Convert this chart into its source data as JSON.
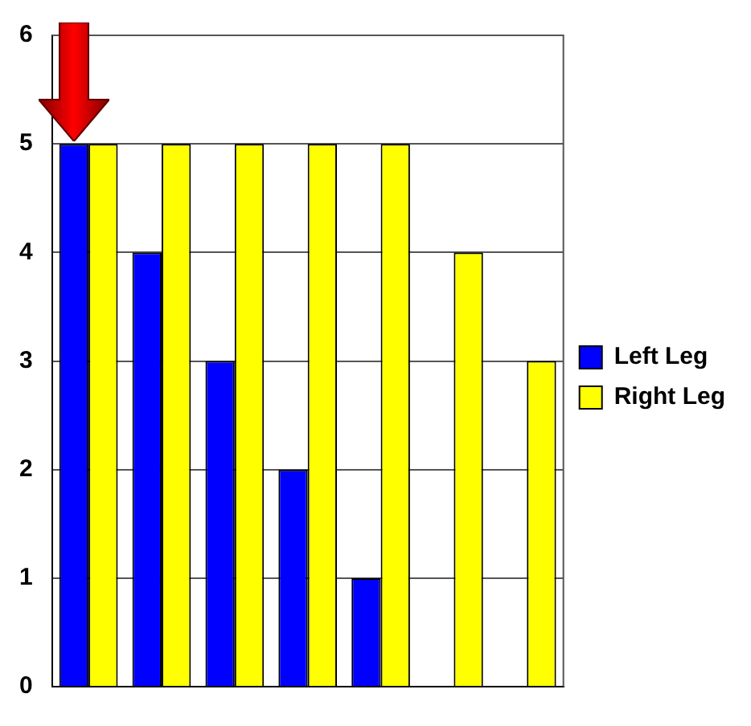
{
  "chart_data": {
    "type": "bar",
    "categories": [
      null,
      null,
      null,
      null,
      null,
      null,
      null
    ],
    "series": [
      {
        "name": "Left Leg",
        "color": "#0000ff",
        "values": [
          5,
          4,
          3,
          2,
          1,
          0,
          0
        ]
      },
      {
        "name": "Right Leg",
        "color": "#ffff00",
        "values": [
          5,
          5,
          5,
          5,
          5,
          4,
          3
        ]
      }
    ],
    "ylim": [
      0,
      6
    ],
    "yticks": [
      0,
      1,
      2,
      3,
      4,
      5,
      6
    ],
    "grid": "y",
    "legend": "right"
  }
}
